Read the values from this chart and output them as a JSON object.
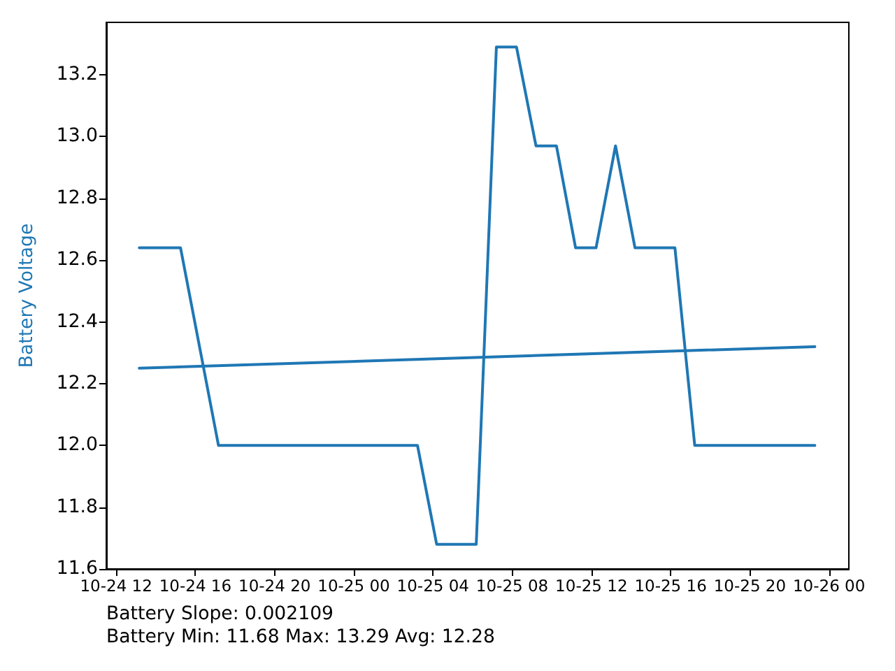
{
  "chart_data": {
    "type": "line",
    "ylabel": "Battery Voltage",
    "annotations": [
      "Battery Slope: 0.002109",
      "Battery Min: 11.68 Max: 13.29 Avg: 12.28"
    ],
    "series": [
      {
        "color": "#1f77b4",
        "x": [
          "--10-24T13:10",
          "--10-24T15:15",
          "--10-24T17:10",
          "--10-25T03:13",
          "--10-25T04:11",
          "--10-25T06:11",
          "--10-25T07:12",
          "--10-25T08:13",
          "--10-25T09:12",
          "--10-25T10:14",
          "--10-25T11:12",
          "--10-25T12:14",
          "--10-25T13:13",
          "--10-25T14:12",
          "--10-25T16:13",
          "--10-25T17:13",
          "--10-25T23:17"
        ],
        "values": [
          12.64,
          12.64,
          12.0,
          12.0,
          11.68,
          11.68,
          13.29,
          13.29,
          12.97,
          12.97,
          12.64,
          12.64,
          12.97,
          12.64,
          12.64,
          12.0,
          12.0
        ]
      },
      {
        "color": "#1f77b4",
        "x": [
          "--10-24T13:10",
          "--10-25T23:17"
        ],
        "values": [
          12.25,
          12.32
        ]
      }
    ],
    "xlim": [
      "--10-24T11:30",
      "--10-26T01:00"
    ],
    "xticks": [
      {
        "value": "--10-24T12:00",
        "label": "10-24 12"
      },
      {
        "value": "--10-24T16:00",
        "label": "10-24 16"
      },
      {
        "value": "--10-24T20:00",
        "label": "10-24 20"
      },
      {
        "value": "--10-25T00:00",
        "label": "10-25 00"
      },
      {
        "value": "--10-25T04:00",
        "label": "10-25 04"
      },
      {
        "value": "--10-25T08:00",
        "label": "10-25 08"
      },
      {
        "value": "--10-25T12:00",
        "label": "10-25 12"
      },
      {
        "value": "--10-25T16:00",
        "label": "10-25 16"
      },
      {
        "value": "--10-25T20:00",
        "label": "10-25 20"
      },
      {
        "value": "--10-26T00:00",
        "label": "10-26 00"
      }
    ],
    "ylim": [
      11.6,
      13.37
    ],
    "yticks": [
      11.6,
      11.8,
      {
        "value": 12,
        "label": "12.0"
      },
      12.2,
      12.4,
      12.6,
      12.8,
      {
        "value": 13,
        "label": "13.0"
      },
      13.2
    ],
    "grid": false,
    "marker": "none",
    "line_style": "solid"
  }
}
